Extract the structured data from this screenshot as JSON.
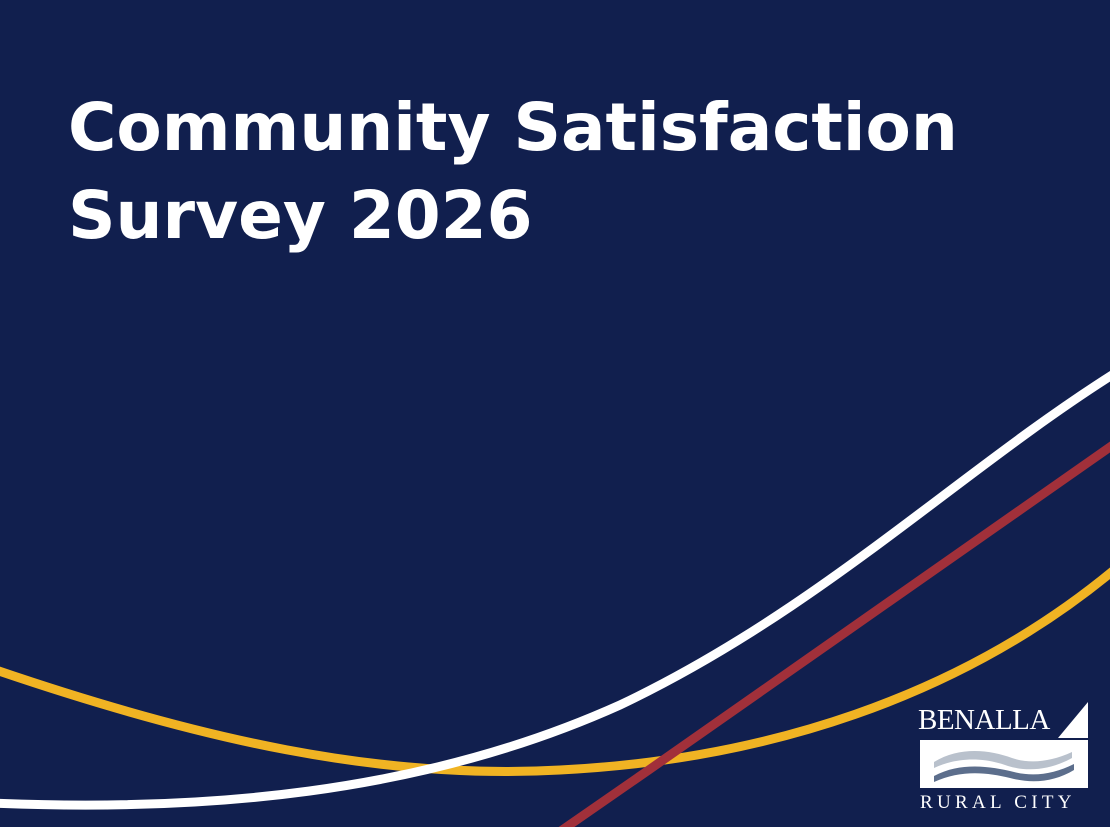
{
  "slide": {
    "title_line1": "Community Satisfaction",
    "title_line2": "Survey 2026"
  },
  "logo": {
    "name_top": "BENALLA",
    "name_bottom": "RURAL CITY"
  },
  "colors": {
    "background": "#111f4e",
    "swoosh_white": "#ffffff",
    "swoosh_red": "#a1303a",
    "swoosh_gold": "#f0b323",
    "wave_light": "#b9c1cc",
    "wave_dark": "#5c6e8c"
  }
}
